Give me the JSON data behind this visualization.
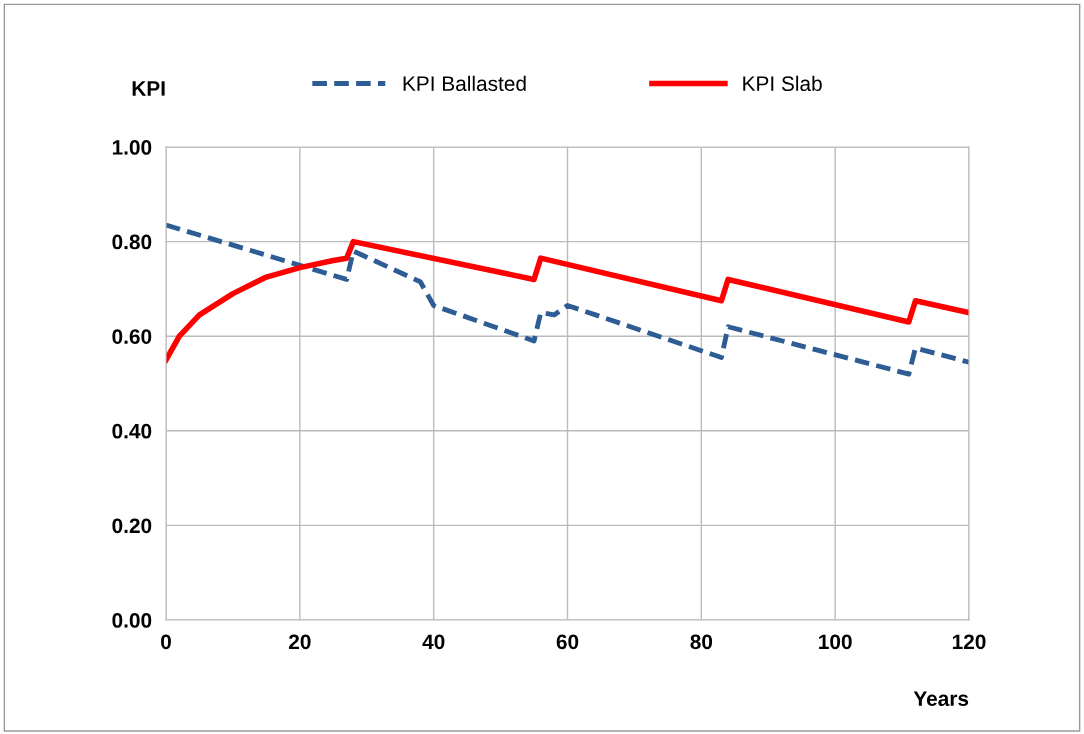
{
  "chart_data": {
    "type": "line",
    "xlabel": "Years",
    "ylabel": "KPI",
    "xlim": [
      0,
      120
    ],
    "xticks": [
      0,
      20,
      40,
      60,
      80,
      100,
      120
    ],
    "ylim": [
      0,
      1
    ],
    "yticks": [
      {
        "value": 0,
        "label": "0.00"
      },
      {
        "value": 0.2,
        "label": "0.20"
      },
      {
        "value": 0.4,
        "label": "0.40"
      },
      {
        "value": 0.6,
        "label": "0.60"
      },
      {
        "value": 0.8,
        "label": "0.80"
      },
      {
        "value": 1,
        "label": "1.00"
      }
    ],
    "grid": true,
    "legend": "top",
    "marker": "none",
    "series": [
      {
        "name": "KPI Ballasted",
        "color": "#2e5c94",
        "line_style": "dashed",
        "x": [
          0,
          20,
          27,
          28,
          38,
          40,
          55,
          56,
          58,
          60,
          83,
          84,
          111,
          112,
          120
        ],
        "values": [
          0.835,
          0.75,
          0.72,
          0.78,
          0.715,
          0.665,
          0.59,
          0.65,
          0.645,
          0.665,
          0.555,
          0.62,
          0.52,
          0.575,
          0.545
        ]
      },
      {
        "name": "KPI Slab",
        "color": "#ff0000",
        "line_style": "solid",
        "x": [
          0,
          2,
          5,
          10,
          15,
          20,
          25,
          27,
          28,
          55,
          56,
          83,
          84,
          111,
          112,
          120
        ],
        "values": [
          0.55,
          0.6,
          0.645,
          0.69,
          0.725,
          0.745,
          0.76,
          0.765,
          0.8,
          0.72,
          0.765,
          0.675,
          0.72,
          0.63,
          0.675,
          0.65
        ]
      }
    ]
  }
}
